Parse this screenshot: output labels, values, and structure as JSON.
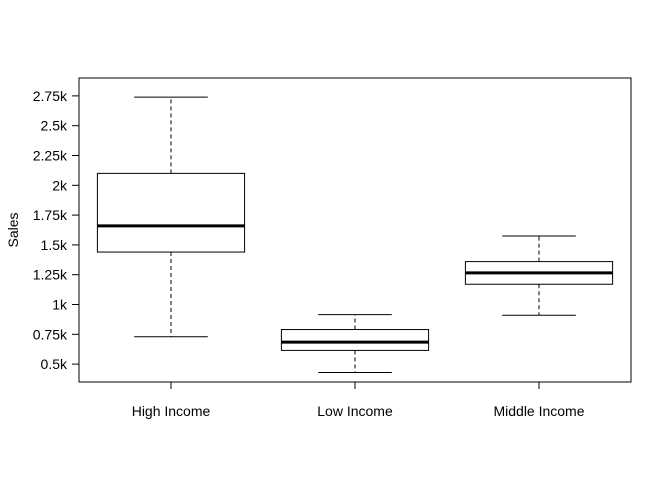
{
  "chart_data": {
    "type": "boxplot",
    "title": "",
    "xlabel": "",
    "ylabel": "Sales",
    "ylim": [
      350,
      2900
    ],
    "y_ticks": [
      {
        "value": 500,
        "label": "0.5k"
      },
      {
        "value": 750,
        "label": "0.75k"
      },
      {
        "value": 1000,
        "label": "1k"
      },
      {
        "value": 1250,
        "label": "1.25k"
      },
      {
        "value": 1500,
        "label": "1.5k"
      },
      {
        "value": 1750,
        "label": "1.75k"
      },
      {
        "value": 2000,
        "label": "2k"
      },
      {
        "value": 2250,
        "label": "2.25k"
      },
      {
        "value": 2500,
        "label": "2.5k"
      },
      {
        "value": 2750,
        "label": "2.75k"
      }
    ],
    "categories": [
      "High Income",
      "Low Income",
      "Middle Income"
    ],
    "boxes": [
      {
        "category": "High Income",
        "whisker_low": 730,
        "q1": 1440,
        "median": 1660,
        "q3": 2100,
        "whisker_high": 2740
      },
      {
        "category": "Low Income",
        "whisker_low": 430,
        "q1": 615,
        "median": 685,
        "q3": 790,
        "whisker_high": 915
      },
      {
        "category": "Middle Income",
        "whisker_low": 910,
        "q1": 1170,
        "median": 1265,
        "q3": 1360,
        "whisker_high": 1575
      }
    ],
    "grid": false,
    "legend": "none"
  }
}
